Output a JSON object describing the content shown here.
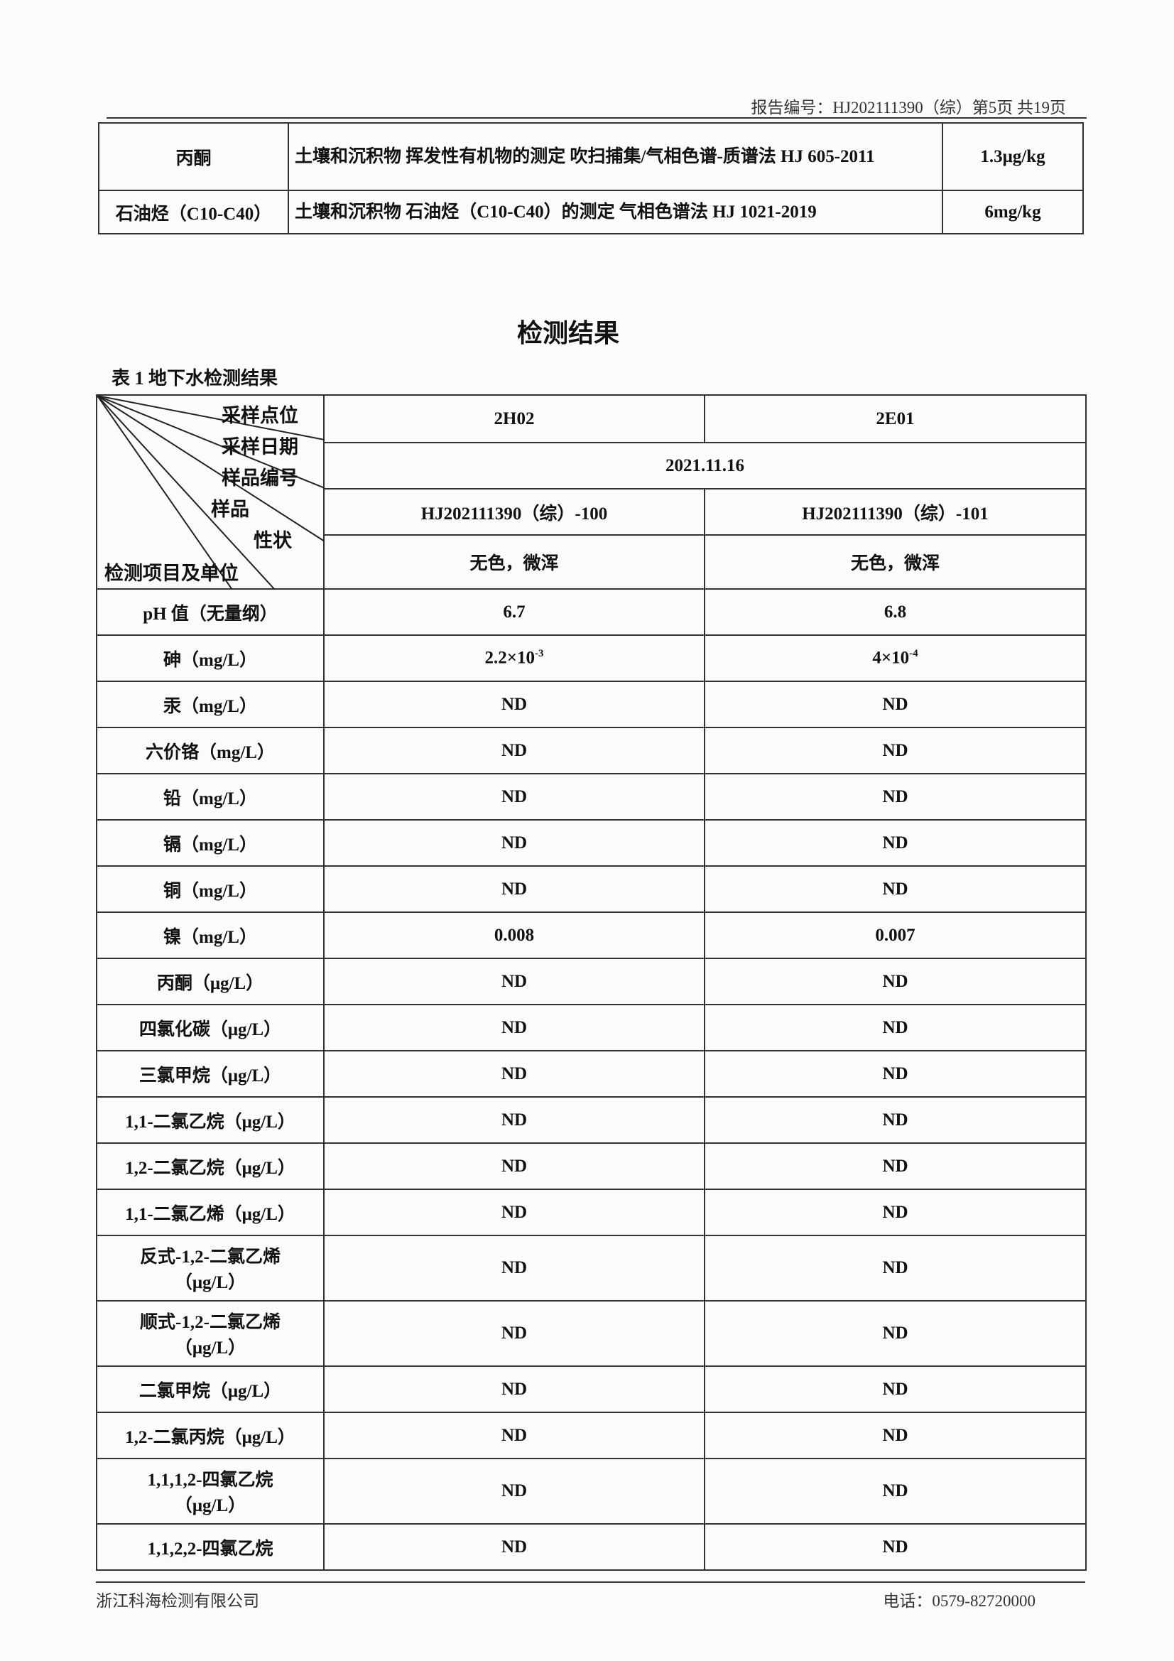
{
  "header": {
    "report_no": "报告编号：HJ202111390（综）第5页 共19页"
  },
  "method_table": [
    {
      "item": "丙酮",
      "method": "土壤和沉积物 挥发性有机物的测定 吹扫捕集/气相色谱-质谱法 HJ 605-2011",
      "limit": "1.3μg/kg"
    },
    {
      "item": "石油烃（C10-C40）",
      "method": "土壤和沉积物 石油烃（C10-C40）的测定 气相色谱法 HJ 1021-2019",
      "limit": "6mg/kg"
    }
  ],
  "section_title": "检测结果",
  "table_caption": "表 1  地下水检测结果",
  "results": {
    "diag_labels": {
      "site": "采样点位",
      "date": "采样日期",
      "sample_no": "样品编号",
      "sample": "样品",
      "property": "性状",
      "item_unit": "检测项目及单位"
    },
    "sites": [
      "2H02",
      "2E01"
    ],
    "date": "2021.11.16",
    "sample_ids": [
      "HJ202111390（综）-100",
      "HJ202111390（综）-101"
    ],
    "properties": [
      "无色，微浑",
      "无色，微浑"
    ],
    "arsenic": {
      "item": "砷（mg/L）",
      "v1": "2.2×10",
      "e1": "-3",
      "v2": "4×10",
      "e2": "-4"
    },
    "rows": [
      {
        "item": "pH 值（无量纲）",
        "v1": "6.7",
        "v2": "6.8"
      },
      {
        "item": "汞（mg/L）",
        "v1": "ND",
        "v2": "ND"
      },
      {
        "item": "六价铬（mg/L）",
        "v1": "ND",
        "v2": "ND"
      },
      {
        "item": "铅（mg/L）",
        "v1": "ND",
        "v2": "ND"
      },
      {
        "item": "镉（mg/L）",
        "v1": "ND",
        "v2": "ND"
      },
      {
        "item": "铜（mg/L）",
        "v1": "ND",
        "v2": "ND"
      },
      {
        "item": "镍（mg/L）",
        "v1": "0.008",
        "v2": "0.007"
      },
      {
        "item": "丙酮（μg/L）",
        "v1": "ND",
        "v2": "ND"
      },
      {
        "item": "四氯化碳（μg/L）",
        "v1": "ND",
        "v2": "ND"
      },
      {
        "item": "三氯甲烷（μg/L）",
        "v1": "ND",
        "v2": "ND"
      },
      {
        "item": "1,1-二氯乙烷（μg/L）",
        "v1": "ND",
        "v2": "ND"
      },
      {
        "item": "1,2-二氯乙烷（μg/L）",
        "v1": "ND",
        "v2": "ND"
      },
      {
        "item": "1,1-二氯乙烯（μg/L）",
        "v1": "ND",
        "v2": "ND"
      },
      {
        "item": "反式-1,2-二氯乙烯（μg/L）",
        "v1": "ND",
        "v2": "ND"
      },
      {
        "item": "顺式-1,2-二氯乙烯（μg/L）",
        "v1": "ND",
        "v2": "ND"
      },
      {
        "item": "二氯甲烷（μg/L）",
        "v1": "ND",
        "v2": "ND"
      },
      {
        "item": "1,2-二氯丙烷（μg/L）",
        "v1": "ND",
        "v2": "ND"
      },
      {
        "item": "1,1,1,2-四氯乙烷（μg/L）",
        "v1": "ND",
        "v2": "ND"
      },
      {
        "item": "1,1,2,2-四氯乙烷",
        "v1": "ND",
        "v2": "ND"
      }
    ]
  },
  "footer": {
    "company": "浙江科海检测有限公司",
    "phone": "电话：0579-82720000"
  }
}
